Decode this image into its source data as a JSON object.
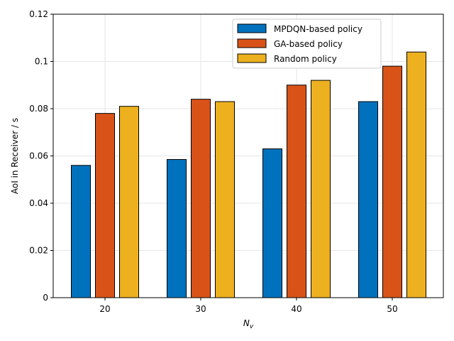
{
  "chart_data": {
    "type": "bar",
    "title": "",
    "xlabel": "N",
    "xlabel_sub": "v",
    "ylabel": "AoI in Receiver / s",
    "categories": [
      "20",
      "30",
      "40",
      "50"
    ],
    "ylim": [
      0,
      0.12
    ],
    "yticks": [
      0,
      0.02,
      0.04,
      0.06,
      0.08,
      0.1,
      0.12
    ],
    "ytick_labels": [
      "0",
      "0.02",
      "0.04",
      "0.06",
      "0.08",
      "0.1",
      "0.12"
    ],
    "grid": true,
    "legend_position": "top-right",
    "series": [
      {
        "name": "MPDQN-based policy",
        "color": "#0072BD",
        "values": [
          0.056,
          0.0585,
          0.063,
          0.083
        ]
      },
      {
        "name": "GA-based policy",
        "color": "#D95319",
        "values": [
          0.078,
          0.084,
          0.09,
          0.098
        ]
      },
      {
        "name": "Random policy",
        "color": "#EDB120",
        "values": [
          0.081,
          0.083,
          0.092,
          0.104
        ]
      }
    ]
  }
}
